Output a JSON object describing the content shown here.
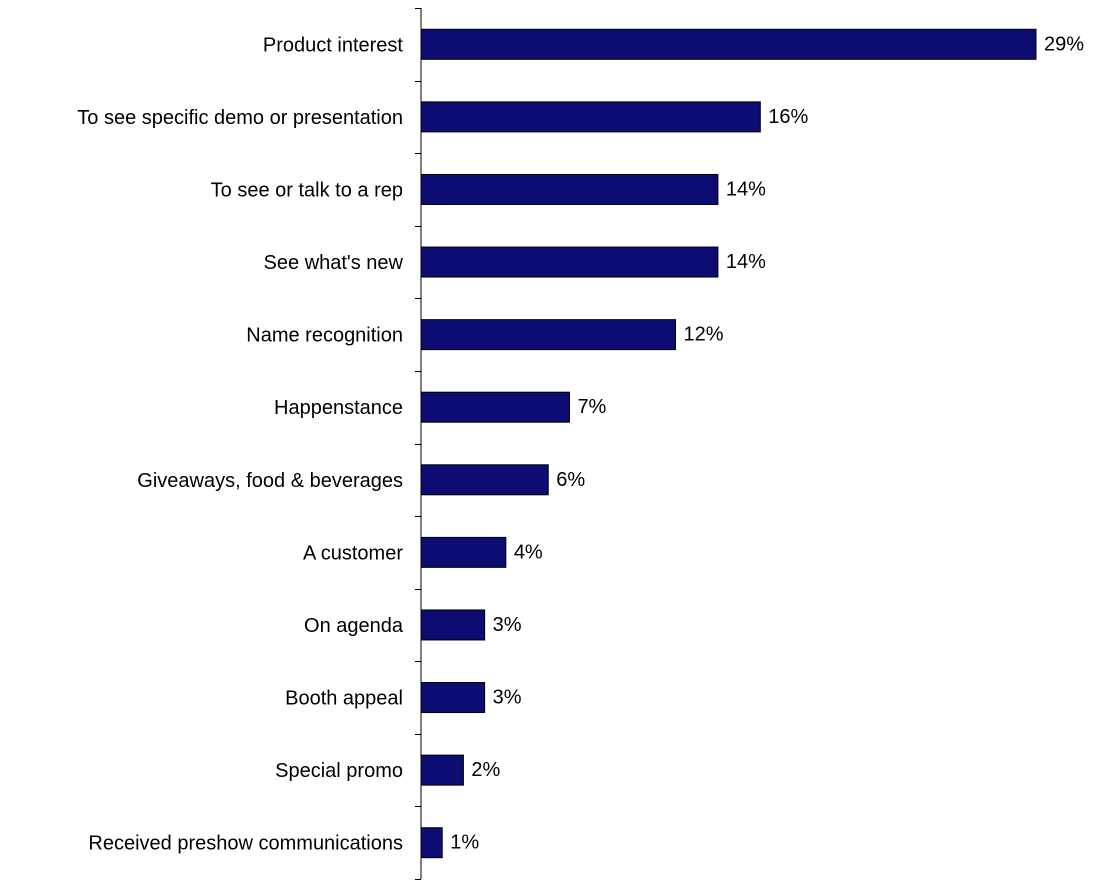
{
  "chart_data": {
    "type": "bar",
    "orientation": "horizontal",
    "categories": [
      "Product interest",
      "To see specific demo or presentation",
      "To see or talk to a rep",
      "See what's new",
      "Name recognition",
      "Happenstance",
      "Giveaways, food & beverages",
      "A customer",
      "On agenda",
      "Booth appeal",
      "Special promo",
      "Received preshow communications"
    ],
    "values": [
      29,
      16,
      14,
      14,
      12,
      7,
      6,
      4,
      3,
      3,
      2,
      1
    ],
    "value_labels": [
      "29%",
      "16%",
      "14%",
      "14%",
      "12%",
      "7%",
      "6%",
      "4%",
      "3%",
      "3%",
      "2%",
      "1%"
    ],
    "title": "",
    "xlabel": "",
    "ylabel": "",
    "xlim": [
      0,
      29
    ],
    "grid": false,
    "legend": "none",
    "bar_color": "#0c0c72",
    "bar_edge_color": "#000000"
  }
}
